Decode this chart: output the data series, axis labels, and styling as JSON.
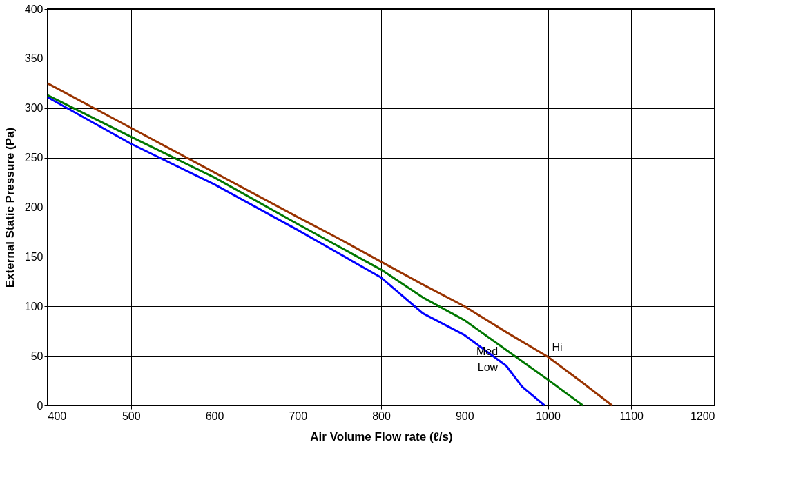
{
  "chart_data": {
    "type": "line",
    "xlabel": "Air Volume Flow rate (ℓ/s)",
    "ylabel": "External Static Pressure (Pa)",
    "xlim": [
      400,
      1200
    ],
    "ylim": [
      0,
      400
    ],
    "xticks": [
      400,
      500,
      600,
      700,
      800,
      900,
      1000,
      1100,
      1200
    ],
    "yticks": [
      0,
      50,
      100,
      150,
      200,
      250,
      300,
      350,
      400
    ],
    "grid": true,
    "legend": false,
    "line_style": "solid",
    "marker": "none",
    "series": [
      {
        "name": "Hi",
        "color": "#993300",
        "x": [
          400,
          500,
          600,
          700,
          750,
          800,
          850,
          900,
          950,
          1000,
          1040,
          1077
        ],
        "values": [
          325,
          280,
          235,
          190,
          168,
          145,
          122,
          100,
          74,
          49,
          24,
          0
        ]
      },
      {
        "name": "Med",
        "color": "#007700",
        "x": [
          400,
          500,
          600,
          700,
          750,
          800,
          850,
          900,
          950,
          1000,
          1042
        ],
        "values": [
          313,
          271,
          230,
          183,
          160,
          137,
          109,
          86,
          56,
          26,
          0
        ]
      },
      {
        "name": "Low",
        "color": "#0000ff",
        "x": [
          400,
          500,
          600,
          700,
          750,
          800,
          850,
          900,
          950,
          969,
          996
        ],
        "values": [
          311,
          264,
          223,
          177,
          153,
          129,
          93,
          71,
          40,
          19,
          0
        ]
      }
    ]
  }
}
